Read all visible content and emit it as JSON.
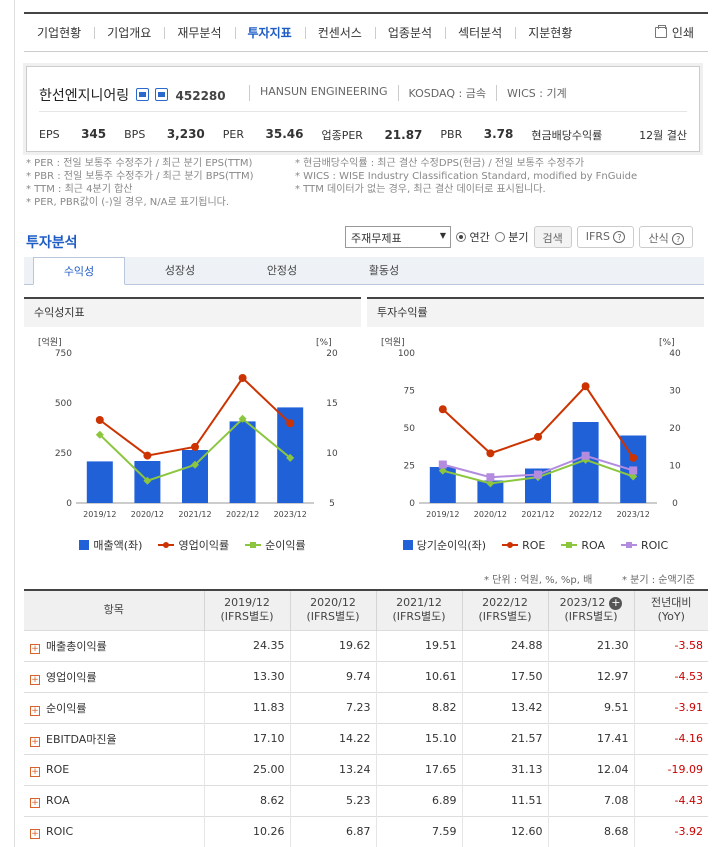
{
  "nav": {
    "tabs": [
      "기업현황",
      "기업개요",
      "재무분석",
      "투자지표",
      "컨센서스",
      "업종분석",
      "섹터분석",
      "지분현황"
    ],
    "active": "투자지표",
    "print_label": "인쇄"
  },
  "company": {
    "name": "한선엔지니어링",
    "code": "452280",
    "english_name": "HANSUN ENGINEERING",
    "market": "KOSDAQ : 금속",
    "wics": "WICS : 기계",
    "stats": [
      {
        "label": "EPS",
        "value": "345"
      },
      {
        "label": "BPS",
        "value": "3,230"
      },
      {
        "label": "PER",
        "value": "35.46"
      },
      {
        "label": "업종PER",
        "value": "21.87"
      },
      {
        "label": "PBR",
        "value": "3.78"
      },
      {
        "label": "현금배당수익률",
        "value": ""
      }
    ],
    "settlement": "12월 결산"
  },
  "notes_left": [
    "* PER : 전일 보통주 수정주가 / 최근 분기 EPS(TTM)",
    "* PBR : 전일 보통주 수정주가 / 최근 분기 BPS(TTM)",
    "* TTM : 최근 4분기 합산",
    "* PER, PBR값이 (-)일 경우, N/A로 표기됩니다."
  ],
  "notes_right": [
    "* 현금배당수익률 : 최근 결산 수정DPS(현금) / 전일 보통주 수정주가",
    "* WICS : WISE Industry Classification Standard, modified by FnGuide",
    "* TTM 데이터가 없는 경우, 최근 결산 데이터로 표시됩니다."
  ],
  "section": {
    "title": "투자분석",
    "select_value": "주재무제표",
    "radio_annual": "연간",
    "radio_quarter": "분기",
    "search_btn": "검색",
    "ifrs_btn": "IFRS",
    "formula_btn": "산식"
  },
  "subtabs": [
    "수익성",
    "성장성",
    "안정성",
    "활동성"
  ],
  "chart_data": [
    {
      "type": "bar",
      "title": "수익성지표",
      "categories": [
        "2019/12",
        "2020/12",
        "2021/12",
        "2022/12",
        "2023/12"
      ],
      "y_left_label": "[억원]",
      "y_right_label": "[%]",
      "y_left_ticks": [
        "750",
        "500",
        "250",
        "0"
      ],
      "y_right_ticks": [
        "20",
        "15",
        "10",
        "5"
      ],
      "ylim_left": [
        0,
        750
      ],
      "ylim_right": [
        5,
        20
      ],
      "series": [
        {
          "name": "매출액(좌)",
          "type": "bar",
          "axis": "left",
          "color": "#2161d8",
          "values": [
            208,
            210,
            265,
            408,
            478
          ]
        },
        {
          "name": "영업이익률",
          "type": "line",
          "axis": "right",
          "color": "#cc3300",
          "marker": "circle",
          "values": [
            13.3,
            9.74,
            10.61,
            17.5,
            12.97
          ]
        },
        {
          "name": "순이익률",
          "type": "line",
          "axis": "right",
          "color": "#8cc63f",
          "marker": "diamond",
          "values": [
            11.83,
            7.23,
            8.82,
            13.42,
            9.51
          ]
        }
      ]
    },
    {
      "type": "bar",
      "title": "투자수익률",
      "categories": [
        "2019/12",
        "2020/12",
        "2021/12",
        "2022/12",
        "2023/12"
      ],
      "y_left_label": "[억원]",
      "y_right_label": "[%]",
      "y_left_ticks": [
        "100",
        "75",
        "50",
        "25",
        "0"
      ],
      "y_right_ticks": [
        "40",
        "30",
        "20",
        "10",
        "0"
      ],
      "ylim_left": [
        0,
        100
      ],
      "ylim_right": [
        0,
        40
      ],
      "series": [
        {
          "name": "당기순이익(좌)",
          "type": "bar",
          "axis": "left",
          "color": "#2161d8",
          "values": [
            24,
            15,
            23,
            54,
            45
          ]
        },
        {
          "name": "ROE",
          "type": "line",
          "axis": "right",
          "color": "#cc3300",
          "marker": "circle",
          "values": [
            25.0,
            13.24,
            17.65,
            31.13,
            12.04
          ]
        },
        {
          "name": "ROA",
          "type": "line",
          "axis": "right",
          "color": "#8cc63f",
          "marker": "diamond",
          "values": [
            8.62,
            5.23,
            6.89,
            11.51,
            7.08
          ]
        },
        {
          "name": "ROIC",
          "type": "line",
          "axis": "right",
          "color": "#b38ce0",
          "marker": "square",
          "values": [
            10.26,
            6.87,
            7.59,
            12.6,
            8.68
          ]
        }
      ]
    }
  ],
  "unit_note": "* 단위 : 억원, %, %p, 배",
  "quarter_note": "* 분기 : 순액기준",
  "table": {
    "header_item": "항목",
    "header_yoy": [
      "전년대비",
      "(YoY)"
    ],
    "periods": [
      [
        "2019/12",
        "(IFRS별도)"
      ],
      [
        "2020/12",
        "(IFRS별도)"
      ],
      [
        "2021/12",
        "(IFRS별도)"
      ],
      [
        "2022/12",
        "(IFRS별도)"
      ],
      [
        "2023/12",
        "(IFRS별도)"
      ]
    ],
    "rows": [
      {
        "label": "매출총이익률",
        "values": [
          "24.35",
          "19.62",
          "19.51",
          "24.88",
          "21.30"
        ],
        "yoy": "-3.58"
      },
      {
        "label": "영업이익률",
        "values": [
          "13.30",
          "9.74",
          "10.61",
          "17.50",
          "12.97"
        ],
        "yoy": "-4.53"
      },
      {
        "label": "순이익률",
        "values": [
          "11.83",
          "7.23",
          "8.82",
          "13.42",
          "9.51"
        ],
        "yoy": "-3.91"
      },
      {
        "label": "EBITDA마진율",
        "values": [
          "17.10",
          "14.22",
          "15.10",
          "21.57",
          "17.41"
        ],
        "yoy": "-4.16"
      },
      {
        "label": "ROE",
        "values": [
          "25.00",
          "13.24",
          "17.65",
          "31.13",
          "12.04"
        ],
        "yoy": "-19.09"
      },
      {
        "label": "ROA",
        "values": [
          "8.62",
          "5.23",
          "6.89",
          "11.51",
          "7.08"
        ],
        "yoy": "-4.43"
      },
      {
        "label": "ROIC",
        "values": [
          "10.26",
          "6.87",
          "7.59",
          "12.60",
          "8.68"
        ],
        "yoy": "-3.92"
      }
    ]
  }
}
